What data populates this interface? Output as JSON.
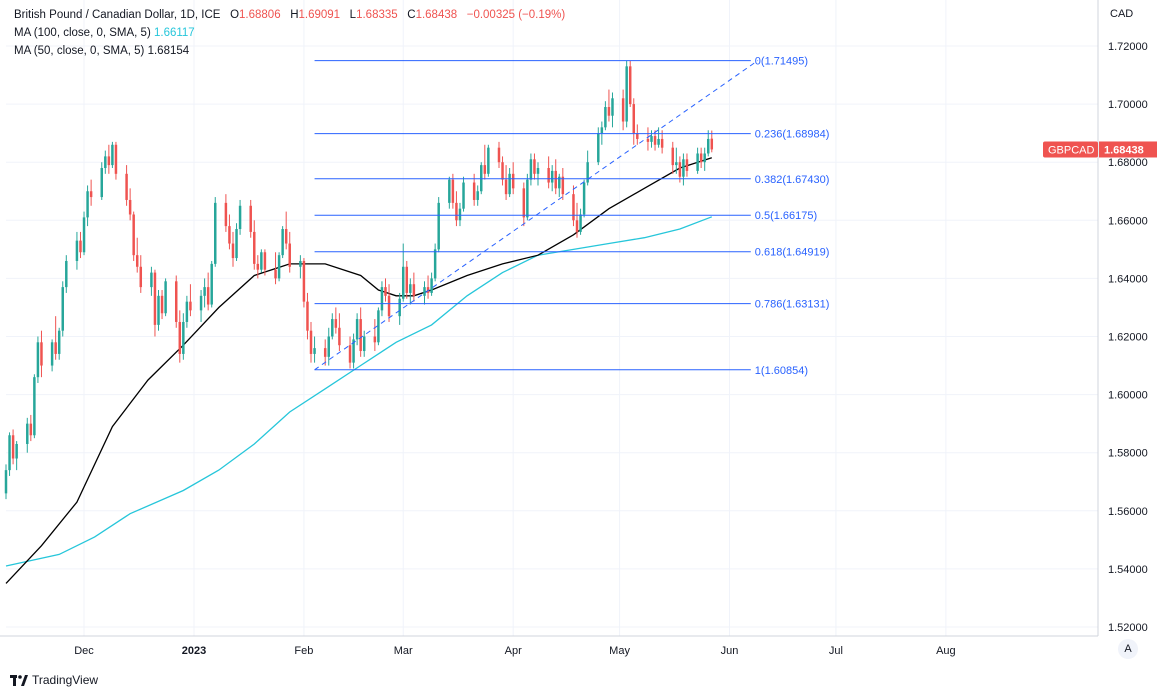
{
  "header": {
    "symbol_line": "British Pound / Canadian Dollar, 1D, ICE",
    "open_label": "O",
    "open": "1.68806",
    "high_label": "H",
    "high": "1.69091",
    "low_label": "L",
    "low": "1.68335",
    "close_label": "C",
    "close": "1.68438",
    "change": "−0.00325 (−0.19%)",
    "ma100_label": "MA (100, close, 0, SMA, 5)",
    "ma100_value": "1.66117",
    "ma50_label": "MA (50, close, 0, SMA, 5)",
    "ma50_value": "1.68154"
  },
  "currency_label": "CAD",
  "price_tag": {
    "symbol": "GBPCAD",
    "value": "1.68438"
  },
  "footer": {
    "brand": "TradingView",
    "auto_button": "A"
  },
  "colors": {
    "up": "#26a69a",
    "down": "#ef5350",
    "ma50": "#000000",
    "ma100": "#26c6da",
    "fib": "#2962ff",
    "trend": "#2962ff",
    "grid": "#f0f3fa",
    "text": "#131722",
    "header_value": "#ef5350"
  },
  "chart_data": {
    "type": "candlestick",
    "symbol": "GBPCAD",
    "ylim": [
      1.515,
      1.725
    ],
    "y_ticks": [
      "1.52000",
      "1.54000",
      "1.56000",
      "1.58000",
      "1.60000",
      "1.62000",
      "1.64000",
      "1.66000",
      "1.68000",
      "1.70000",
      "1.72000"
    ],
    "x_ticks": [
      {
        "label": "Dec",
        "day": 22
      },
      {
        "label": "2023",
        "day": 53
      },
      {
        "label": "Feb",
        "day": 84
      },
      {
        "label": "Mar",
        "day": 112
      },
      {
        "label": "Apr",
        "day": 143
      },
      {
        "label": "May",
        "day": 173
      },
      {
        "label": "Jun",
        "day": 204
      },
      {
        "label": "Jul",
        "day": 234
      },
      {
        "label": "Aug",
        "day": 265
      }
    ],
    "x_range": [
      0,
      300
    ],
    "candles": [
      [
        0,
        1.566,
        1.576,
        1.564,
        1.574
      ],
      [
        1,
        1.574,
        1.587,
        1.572,
        1.586
      ],
      [
        2,
        1.586,
        1.588,
        1.576,
        1.578
      ],
      [
        3,
        1.578,
        1.584,
        1.574,
        1.583
      ],
      [
        6,
        1.583,
        1.592,
        1.58,
        1.59
      ],
      [
        7,
        1.59,
        1.593,
        1.584,
        1.586
      ],
      [
        8,
        1.586,
        1.607,
        1.585,
        1.606
      ],
      [
        9,
        1.606,
        1.62,
        1.604,
        1.618
      ],
      [
        10,
        1.618,
        1.622,
        1.606,
        1.61
      ],
      [
        13,
        1.61,
        1.619,
        1.608,
        1.618
      ],
      [
        14,
        1.618,
        1.627,
        1.612,
        1.614
      ],
      [
        15,
        1.614,
        1.623,
        1.612,
        1.622
      ],
      [
        16,
        1.622,
        1.639,
        1.62,
        1.637
      ],
      [
        17,
        1.637,
        1.648,
        1.635,
        1.646
      ],
      [
        20,
        1.646,
        1.656,
        1.643,
        1.653
      ],
      [
        21,
        1.653,
        1.656,
        1.647,
        1.649
      ],
      [
        22,
        1.649,
        1.663,
        1.648,
        1.661
      ],
      [
        23,
        1.661,
        1.672,
        1.658,
        1.67
      ],
      [
        24,
        1.67,
        1.674,
        1.665,
        1.668
      ],
      [
        27,
        1.668,
        1.68,
        1.667,
        1.678
      ],
      [
        28,
        1.678,
        1.684,
        1.676,
        1.682
      ],
      [
        29,
        1.682,
        1.686,
        1.676,
        1.679
      ],
      [
        30,
        1.679,
        1.687,
        1.678,
        1.686
      ],
      [
        31,
        1.686,
        1.687,
        1.674,
        1.676
      ],
      [
        34,
        1.676,
        1.679,
        1.665,
        1.667
      ],
      [
        35,
        1.667,
        1.671,
        1.66,
        1.662
      ],
      [
        36,
        1.662,
        1.663,
        1.646,
        1.648
      ],
      [
        37,
        1.648,
        1.654,
        1.642,
        1.644
      ],
      [
        38,
        1.644,
        1.648,
        1.635,
        1.637
      ],
      [
        41,
        1.637,
        1.644,
        1.634,
        1.642
      ],
      [
        42,
        1.642,
        1.643,
        1.62,
        1.624
      ],
      [
        43,
        1.624,
        1.636,
        1.622,
        1.634
      ],
      [
        44,
        1.634,
        1.636,
        1.626,
        1.628
      ],
      [
        45,
        1.628,
        1.64,
        1.627,
        1.639
      ],
      [
        48,
        1.639,
        1.641,
        1.623,
        1.625
      ],
      [
        49,
        1.625,
        1.629,
        1.611,
        1.614
      ],
      [
        50,
        1.614,
        1.628,
        1.612,
        1.625
      ],
      [
        51,
        1.625,
        1.634,
        1.623,
        1.632
      ],
      [
        52,
        1.632,
        1.638,
        1.627,
        1.629
      ],
      [
        55,
        1.629,
        1.636,
        1.625,
        1.634
      ],
      [
        56,
        1.634,
        1.64,
        1.63,
        1.637
      ],
      [
        57,
        1.637,
        1.642,
        1.629,
        1.631
      ],
      [
        58,
        1.631,
        1.646,
        1.63,
        1.645
      ],
      [
        59,
        1.645,
        1.668,
        1.644,
        1.666
      ],
      [
        62,
        1.666,
        1.669,
        1.656,
        1.658
      ],
      [
        63,
        1.658,
        1.662,
        1.65,
        1.652
      ],
      [
        64,
        1.652,
        1.656,
        1.644,
        1.647
      ],
      [
        65,
        1.647,
        1.659,
        1.646,
        1.657
      ],
      [
        66,
        1.657,
        1.667,
        1.655,
        1.665
      ],
      [
        69,
        1.665,
        1.667,
        1.654,
        1.656
      ],
      [
        70,
        1.656,
        1.66,
        1.643,
        1.645
      ],
      [
        71,
        1.645,
        1.648,
        1.64,
        1.643
      ],
      [
        72,
        1.643,
        1.65,
        1.642,
        1.649
      ],
      [
        73,
        1.649,
        1.65,
        1.641,
        1.643
      ],
      [
        76,
        1.643,
        1.649,
        1.638,
        1.64
      ],
      [
        77,
        1.64,
        1.649,
        1.639,
        1.648
      ],
      [
        78,
        1.648,
        1.658,
        1.647,
        1.657
      ],
      [
        79,
        1.657,
        1.663,
        1.65,
        1.652
      ],
      [
        80,
        1.652,
        1.656,
        1.642,
        1.644
      ],
      [
        83,
        1.644,
        1.648,
        1.64,
        1.646
      ],
      [
        84,
        1.646,
        1.647,
        1.63,
        1.632
      ],
      [
        85,
        1.632,
        1.635,
        1.619,
        1.622
      ],
      [
        86,
        1.622,
        1.625,
        1.611,
        1.614
      ],
      [
        87,
        1.614,
        1.62,
        1.611,
        1.616
      ],
      [
        90,
        1.616,
        1.619,
        1.61,
        1.613
      ],
      [
        91,
        1.613,
        1.623,
        1.61,
        1.62
      ],
      [
        92,
        1.62,
        1.628,
        1.619,
        1.626
      ],
      [
        93,
        1.626,
        1.63,
        1.621,
        1.623
      ],
      [
        94,
        1.623,
        1.628,
        1.615,
        1.617
      ],
      [
        97,
        1.617,
        1.62,
        1.609,
        1.611
      ],
      [
        98,
        1.611,
        1.621,
        1.609,
        1.619
      ],
      [
        99,
        1.619,
        1.628,
        1.617,
        1.626
      ],
      [
        100,
        1.626,
        1.63,
        1.613,
        1.615
      ],
      [
        101,
        1.615,
        1.622,
        1.613,
        1.62
      ],
      [
        104,
        1.62,
        1.626,
        1.615,
        1.618
      ],
      [
        105,
        1.618,
        1.63,
        1.617,
        1.629
      ],
      [
        106,
        1.629,
        1.639,
        1.627,
        1.637
      ],
      [
        107,
        1.637,
        1.64,
        1.632,
        1.634
      ],
      [
        108,
        1.634,
        1.638,
        1.625,
        1.627
      ],
      [
        111,
        1.627,
        1.635,
        1.624,
        1.633
      ],
      [
        112,
        1.633,
        1.652,
        1.632,
        1.644
      ],
      [
        113,
        1.644,
        1.646,
        1.633,
        1.635
      ],
      [
        114,
        1.635,
        1.64,
        1.631,
        1.638
      ],
      [
        115,
        1.638,
        1.642,
        1.632,
        1.634
      ],
      [
        118,
        1.634,
        1.639,
        1.631,
        1.637
      ],
      [
        119,
        1.637,
        1.641,
        1.633,
        1.635
      ],
      [
        120,
        1.635,
        1.642,
        1.634,
        1.64
      ],
      [
        121,
        1.64,
        1.652,
        1.639,
        1.65
      ],
      [
        122,
        1.65,
        1.668,
        1.649,
        1.666
      ],
      [
        125,
        1.666,
        1.675,
        1.664,
        1.674
      ],
      [
        126,
        1.674,
        1.676,
        1.664,
        1.666
      ],
      [
        127,
        1.666,
        1.67,
        1.658,
        1.66
      ],
      [
        128,
        1.66,
        1.666,
        1.658,
        1.664
      ],
      [
        129,
        1.664,
        1.675,
        1.663,
        1.673
      ],
      [
        132,
        1.673,
        1.676,
        1.665,
        1.667
      ],
      [
        133,
        1.667,
        1.672,
        1.665,
        1.67
      ],
      [
        134,
        1.67,
        1.68,
        1.669,
        1.679
      ],
      [
        135,
        1.679,
        1.686,
        1.674,
        1.676
      ],
      [
        136,
        1.676,
        1.686,
        1.675,
        1.685
      ],
      [
        139,
        1.685,
        1.687,
        1.678,
        1.68
      ],
      [
        140,
        1.68,
        1.682,
        1.672,
        1.674
      ],
      [
        141,
        1.674,
        1.679,
        1.667,
        1.669
      ],
      [
        142,
        1.669,
        1.678,
        1.668,
        1.676
      ],
      [
        143,
        1.676,
        1.68,
        1.669,
        1.671
      ],
      [
        146,
        1.671,
        1.673,
        1.658,
        1.661
      ],
      [
        147,
        1.661,
        1.676,
        1.66,
        1.674
      ],
      [
        148,
        1.674,
        1.683,
        1.672,
        1.681
      ],
      [
        149,
        1.681,
        1.683,
        1.674,
        1.676
      ],
      [
        150,
        1.676,
        1.68,
        1.672,
        1.678
      ],
      [
        153,
        1.678,
        1.682,
        1.671,
        1.673
      ],
      [
        154,
        1.673,
        1.679,
        1.67,
        1.677
      ],
      [
        155,
        1.677,
        1.681,
        1.669,
        1.671
      ],
      [
        156,
        1.671,
        1.676,
        1.668,
        1.675
      ],
      [
        157,
        1.675,
        1.678,
        1.667,
        1.669
      ],
      [
        160,
        1.669,
        1.672,
        1.658,
        1.66
      ],
      [
        161,
        1.66,
        1.666,
        1.654,
        1.656
      ],
      [
        162,
        1.656,
        1.664,
        1.655,
        1.662
      ],
      [
        163,
        1.662,
        1.674,
        1.661,
        1.673
      ],
      [
        164,
        1.673,
        1.684,
        1.672,
        1.68
      ],
      [
        167,
        1.68,
        1.692,
        1.679,
        1.69
      ],
      [
        168,
        1.69,
        1.694,
        1.686,
        1.692
      ],
      [
        169,
        1.692,
        1.701,
        1.691,
        1.699
      ],
      [
        170,
        1.699,
        1.705,
        1.694,
        1.696
      ],
      [
        171,
        1.696,
        1.704,
        1.692,
        1.702
      ],
      [
        174,
        1.702,
        1.705,
        1.691,
        1.694
      ],
      [
        175,
        1.694,
        1.715,
        1.692,
        1.713
      ],
      [
        176,
        1.713,
        1.715,
        1.699,
        1.7
      ],
      [
        177,
        1.7,
        1.702,
        1.686,
        1.69
      ],
      [
        178,
        1.69,
        1.693,
        1.686,
        1.688
      ],
      [
        181,
        1.688,
        1.692,
        1.684,
        1.687
      ],
      [
        182,
        1.687,
        1.691,
        1.685,
        1.689
      ],
      [
        183,
        1.689,
        1.691,
        1.684,
        1.686
      ],
      [
        184,
        1.686,
        1.692,
        1.685,
        1.688
      ],
      [
        185,
        1.688,
        1.691,
        1.683,
        1.685
      ],
      [
        188,
        1.685,
        1.687,
        1.676,
        1.679
      ],
      [
        189,
        1.679,
        1.685,
        1.676,
        1.68
      ],
      [
        190,
        1.68,
        1.682,
        1.673,
        1.675
      ],
      [
        191,
        1.675,
        1.683,
        1.672,
        1.681
      ],
      [
        192,
        1.681,
        1.683,
        1.675,
        1.677
      ],
      [
        195,
        1.677,
        1.685,
        1.676,
        1.683
      ],
      [
        196,
        1.683,
        1.685,
        1.678,
        1.68
      ],
      [
        197,
        1.68,
        1.685,
        1.677,
        1.683
      ],
      [
        198,
        1.683,
        1.691,
        1.682,
        1.688
      ],
      [
        199,
        1.6881,
        1.6909,
        1.6834,
        1.6844
      ]
    ],
    "ma50": [
      [
        0,
        1.535
      ],
      [
        10,
        1.548
      ],
      [
        20,
        1.563
      ],
      [
        30,
        1.589
      ],
      [
        40,
        1.605
      ],
      [
        50,
        1.617
      ],
      [
        60,
        1.63
      ],
      [
        70,
        1.641
      ],
      [
        80,
        1.645
      ],
      [
        90,
        1.645
      ],
      [
        100,
        1.641
      ],
      [
        105,
        1.636
      ],
      [
        110,
        1.634
      ],
      [
        115,
        1.634
      ],
      [
        120,
        1.636
      ],
      [
        130,
        1.641
      ],
      [
        140,
        1.645
      ],
      [
        150,
        1.648
      ],
      [
        160,
        1.655
      ],
      [
        170,
        1.664
      ],
      [
        180,
        1.671
      ],
      [
        190,
        1.678
      ],
      [
        199,
        1.6815
      ]
    ],
    "ma100": [
      [
        0,
        1.541
      ],
      [
        15,
        1.545
      ],
      [
        25,
        1.551
      ],
      [
        35,
        1.559
      ],
      [
        50,
        1.567
      ],
      [
        60,
        1.574
      ],
      [
        70,
        1.583
      ],
      [
        80,
        1.594
      ],
      [
        90,
        1.602
      ],
      [
        100,
        1.61
      ],
      [
        110,
        1.618
      ],
      [
        120,
        1.624
      ],
      [
        130,
        1.634
      ],
      [
        140,
        1.642
      ],
      [
        150,
        1.648
      ],
      [
        160,
        1.65
      ],
      [
        170,
        1.652
      ],
      [
        180,
        1.654
      ],
      [
        190,
        1.657
      ],
      [
        199,
        1.6612
      ]
    ],
    "trendline": [
      [
        87,
        1.60854
      ],
      [
        212,
        1.715
      ]
    ],
    "fibonacci": {
      "start_day": 87,
      "end_day": 210,
      "levels": [
        {
          "label": "0(1.71495)",
          "value": 1.71495
        },
        {
          "label": "0.236(1.68984)",
          "value": 1.68984
        },
        {
          "label": "0.382(1.67430)",
          "value": 1.6743
        },
        {
          "label": "0.5(1.66175)",
          "value": 1.66175
        },
        {
          "label": "0.618(1.64919)",
          "value": 1.64919
        },
        {
          "label": "0.786(1.63131)",
          "value": 1.63131
        },
        {
          "label": "1(1.60854)",
          "value": 1.60854
        }
      ]
    }
  }
}
